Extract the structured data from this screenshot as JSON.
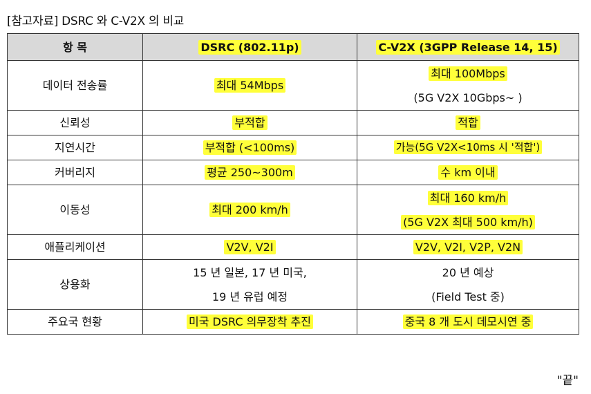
{
  "caption": "[참고자료] DSRC 와 C-V2X 의 비교",
  "headers": [
    "항 목",
    "DSRC (802.11p)",
    "C-V2X (3GPP Release 14, 15)"
  ],
  "rows": [
    {
      "item": "데이터 전송률",
      "dsrc": [
        "최대 54Mbps"
      ],
      "cv2x": [
        "최대 100Mbps",
        "(5G V2X 10Gbps~ )"
      ]
    },
    {
      "item": "신뢰성",
      "dsrc": [
        "부적합"
      ],
      "cv2x": [
        "적합"
      ]
    },
    {
      "item": "지연시간",
      "dsrc": [
        "부적합 (<100ms)"
      ],
      "cv2x": [
        "가능(5G V2X<10ms 시 '적합')"
      ]
    },
    {
      "item": "커버리지",
      "dsrc": [
        "평균 250~300m"
      ],
      "cv2x": [
        "수 km 이내"
      ]
    },
    {
      "item": "이동성",
      "dsrc": [
        "최대 200 km/h"
      ],
      "cv2x": [
        "최대 160 km/h",
        "(5G V2X 최대 500 km/h)"
      ]
    },
    {
      "item": "애플리케이션",
      "dsrc": [
        "V2V, V2I"
      ],
      "cv2x": [
        "V2V, V2I, V2P, V2N"
      ]
    },
    {
      "item": "상용화",
      "dsrc": [
        "15 년 일본, 17 년 미국,",
        "19 년 유럽 예정"
      ],
      "cv2x": [
        "20 년 예상",
        "(Field Test 중)"
      ]
    },
    {
      "item": "주요국 현황",
      "dsrc": [
        "미국 DSRC 의무장착 추진"
      ],
      "cv2x": [
        "중국 8 개 도시 데모시연 중"
      ]
    }
  ],
  "end_mark": "\"끝\"",
  "highlight_color": "#ffff3a"
}
